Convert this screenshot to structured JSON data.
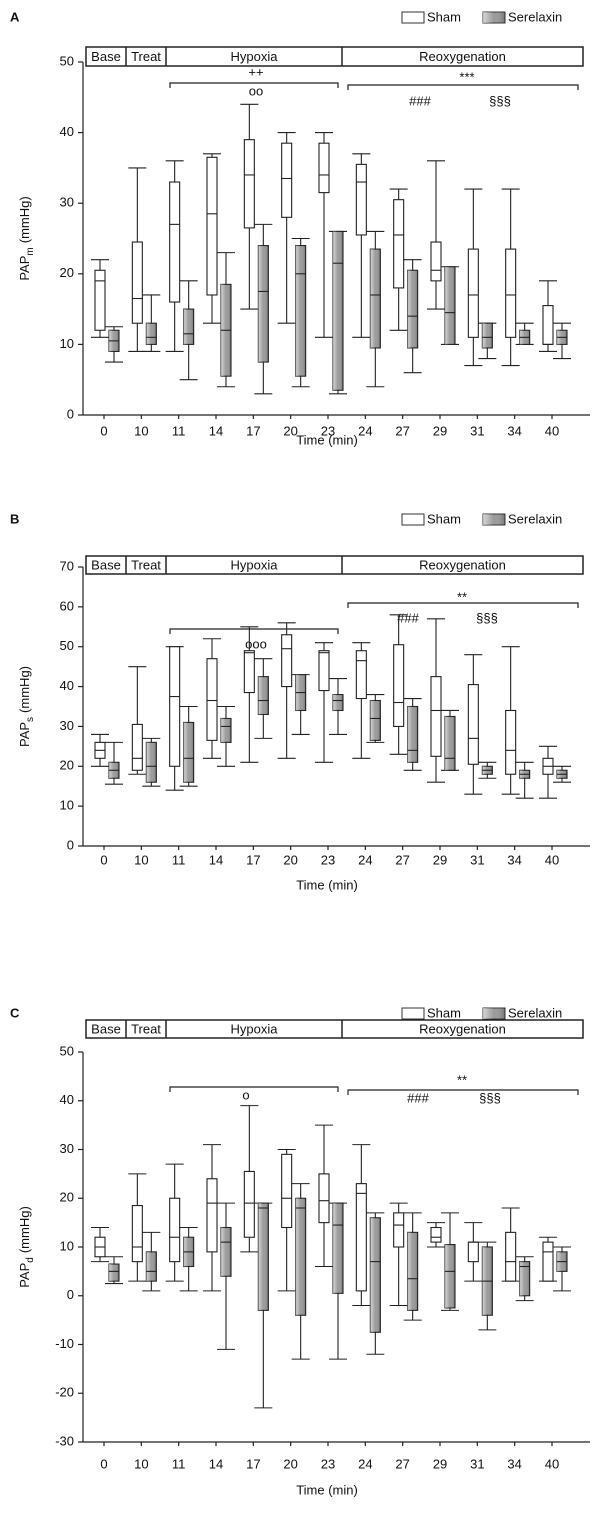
{
  "chart_data": [
    {
      "type": "box",
      "panel_label": "A",
      "phases": [
        "Base",
        "Treat",
        "Hypoxia",
        "Reoxygenation"
      ],
      "annotations": [
        "++",
        "oo",
        "***",
        "###",
        "§§§"
      ],
      "ylabel": {
        "main": "PAP",
        "sub": "m",
        "unit": "(mmHg)"
      },
      "xlabel": "Time (min)",
      "categories": [
        "0",
        "10",
        "11",
        "14",
        "17",
        "20",
        "23",
        "24",
        "27",
        "29",
        "31",
        "34",
        "40"
      ],
      "ylim": [
        0,
        50
      ],
      "yticks": [
        0,
        10,
        20,
        30,
        40,
        50
      ],
      "series": [
        {
          "name": "Sham",
          "color": "#ffffff",
          "min": [
            11,
            9,
            9,
            13,
            15,
            13,
            11,
            11,
            12,
            15,
            7,
            7,
            9
          ],
          "q1": [
            12,
            13,
            16,
            17,
            26.5,
            28,
            31.5,
            25.5,
            18,
            19,
            11,
            11,
            10
          ],
          "median": [
            19,
            16.5,
            27,
            28.5,
            34,
            33.5,
            34,
            33,
            25.5,
            20.5,
            17,
            17,
            10
          ],
          "q3": [
            20.5,
            24.5,
            33,
            36.5,
            39,
            38.5,
            38.5,
            35.5,
            30.5,
            24.5,
            23.5,
            23.5,
            15.5
          ],
          "max": [
            22,
            35,
            36,
            37,
            44,
            40,
            40,
            37,
            32,
            36,
            32,
            32,
            19
          ]
        },
        {
          "name": "Serelaxin",
          "color": "#9a9a9a",
          "min": [
            7.5,
            9,
            5,
            4,
            3,
            4,
            3,
            4,
            6,
            10,
            8,
            10,
            8
          ],
          "q1": [
            9,
            10,
            10,
            5.5,
            7.5,
            5.5,
            3.5,
            9.5,
            9.5,
            10,
            9.5,
            10,
            10
          ],
          "median": [
            10.5,
            11,
            11.5,
            12,
            17.5,
            20,
            21.5,
            17,
            14,
            14.5,
            11,
            11,
            11
          ],
          "q3": [
            12,
            13,
            15,
            18.5,
            24,
            24,
            26,
            23.5,
            20.5,
            21,
            13,
            12,
            12
          ],
          "max": [
            12.5,
            17,
            19,
            23,
            27,
            25,
            26,
            26,
            22,
            21,
            13,
            13,
            13
          ]
        }
      ]
    },
    {
      "type": "box",
      "panel_label": "B",
      "phases": [
        "Base",
        "Treat",
        "Hypoxia",
        "Reoxygenation"
      ],
      "annotations": [
        "ooo",
        "**",
        "###",
        "§§§"
      ],
      "ylabel": {
        "main": "PAP",
        "sub": "s",
        "unit": "(mmHg)"
      },
      "xlabel": "Time (min)",
      "categories": [
        "0",
        "10",
        "11",
        "14",
        "17",
        "20",
        "23",
        "24",
        "27",
        "29",
        "31",
        "34",
        "40"
      ],
      "ylim": [
        0,
        70
      ],
      "yticks": [
        0,
        10,
        20,
        30,
        40,
        50,
        60,
        70
      ],
      "series": [
        {
          "name": "Sham",
          "color": "#ffffff",
          "min": [
            20,
            18,
            14,
            22,
            21,
            22,
            21,
            22,
            23,
            16,
            13,
            13,
            12
          ],
          "q1": [
            22,
            19,
            20,
            26.5,
            38.5,
            40,
            39,
            37,
            30,
            22.5,
            20.5,
            18,
            18
          ],
          "median": [
            24,
            22,
            37.5,
            36.5,
            48.5,
            49.5,
            48.5,
            46.5,
            36,
            34,
            27,
            24,
            20
          ],
          "q3": [
            26,
            30.5,
            50,
            47,
            49,
            53,
            49,
            49,
            50.5,
            42.5,
            40.5,
            34,
            22
          ],
          "max": [
            28,
            45,
            50,
            52,
            55,
            56,
            51,
            51,
            58,
            57,
            48,
            50,
            25
          ]
        },
        {
          "name": "Serelaxin",
          "color": "#9a9a9a",
          "min": [
            15.5,
            15,
            15,
            20,
            27,
            28,
            28,
            26,
            19,
            19,
            17,
            12,
            16
          ],
          "q1": [
            17,
            16,
            16,
            26,
            33,
            34,
            34,
            26.5,
            21,
            19,
            18,
            17,
            17
          ],
          "median": [
            19,
            20,
            22,
            30,
            36.5,
            38.5,
            36.5,
            32,
            24,
            22,
            19,
            18,
            18
          ],
          "q3": [
            21,
            26,
            31,
            32,
            42.5,
            43,
            38,
            36.5,
            35,
            32.5,
            20,
            19,
            19
          ],
          "max": [
            26,
            27,
            35,
            35,
            47,
            43,
            42,
            38,
            37,
            34,
            21,
            21,
            20
          ]
        }
      ]
    },
    {
      "type": "box",
      "panel_label": "C",
      "phases": [
        "Base",
        "Treat",
        "Hypoxia",
        "Reoxygenation"
      ],
      "annotations": [
        "o",
        "**",
        "###",
        "§§§"
      ],
      "ylabel": {
        "main": "PAP",
        "sub": "d",
        "unit": "(mmHg)"
      },
      "xlabel": "Time (min)",
      "categories": [
        "0",
        "10",
        "11",
        "14",
        "17",
        "20",
        "23",
        "24",
        "27",
        "29",
        "31",
        "34",
        "40"
      ],
      "ylim": [
        -30,
        50
      ],
      "yticks": [
        -30,
        -20,
        -10,
        0,
        10,
        20,
        30,
        40,
        50
      ],
      "series": [
        {
          "name": "Sham",
          "color": "#ffffff",
          "min": [
            7,
            3,
            3,
            1,
            9,
            1,
            6,
            -2,
            -2,
            10,
            3,
            3,
            3
          ],
          "q1": [
            8,
            7,
            7,
            9,
            12,
            14,
            15,
            1,
            10,
            11,
            7,
            3,
            3
          ],
          "median": [
            10,
            10,
            12,
            19,
            19,
            20,
            19.5,
            21,
            14.5,
            12,
            11,
            7,
            9
          ],
          "q3": [
            12,
            18.5,
            20,
            24,
            25.5,
            29,
            25,
            23,
            17,
            14,
            11,
            13,
            11
          ],
          "max": [
            14,
            25,
            27,
            31,
            39,
            30,
            35,
            31,
            19,
            15,
            15,
            18,
            12
          ]
        },
        {
          "name": "Serelaxin",
          "color": "#9a9a9a",
          "min": [
            2.5,
            1,
            1,
            -11,
            -23,
            -13,
            -13,
            -12,
            -5,
            -3,
            -7,
            -1,
            1
          ],
          "q1": [
            3,
            3,
            6,
            4,
            -3,
            -4,
            0.5,
            -7.5,
            -3,
            -2.5,
            -4,
            0,
            5
          ],
          "median": [
            5,
            5,
            9,
            11,
            18,
            18,
            14.5,
            7,
            3.5,
            5,
            3,
            6,
            7
          ],
          "q3": [
            6.5,
            9,
            12,
            14,
            19,
            20,
            19,
            16,
            13,
            10.5,
            10,
            7,
            9
          ],
          "max": [
            8,
            13,
            14,
            19,
            19,
            23,
            19,
            17,
            17,
            17,
            11,
            8,
            10
          ]
        }
      ]
    }
  ]
}
